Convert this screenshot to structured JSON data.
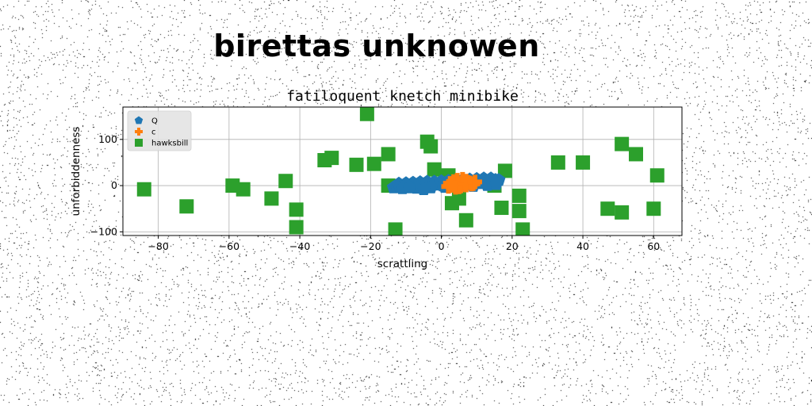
{
  "suptitle": "birettas unknowen",
  "chart_data": {
    "type": "scatter",
    "title": "fatiloquent knetch minibike",
    "xlabel": "scrattling",
    "ylabel": "unforbiddenness",
    "xlim": [
      -90,
      68
    ],
    "ylim": [
      -108,
      170
    ],
    "xticks": [
      -80,
      -60,
      -40,
      -20,
      0,
      20,
      40,
      60
    ],
    "xtick_labels": [
      "−80",
      "−60",
      "−40",
      "−20",
      "0",
      "20",
      "40",
      "60"
    ],
    "yticks": [
      -100,
      0,
      100
    ],
    "ytick_labels": [
      "−100",
      "0",
      "100"
    ],
    "grid": true,
    "legend_placement": "upper left",
    "series": [
      {
        "name": "Q",
        "marker": "pentagon",
        "color": "#1f77b4",
        "x": [
          -13.5,
          -12.6,
          -11.7,
          -10.8,
          -9.9,
          -9.0,
          -8.1,
          -7.2,
          -6.3,
          -5.4,
          -4.5,
          -3.6,
          -2.7,
          -1.8,
          -0.9,
          0.0,
          0.9,
          1.8,
          2.7,
          3.6,
          4.5,
          5.4,
          6.3,
          7.2,
          8.1,
          9.0,
          9.9,
          10.8,
          11.7,
          12.6,
          13.5,
          14.4,
          15.3,
          16.2,
          -12.0,
          -10.0,
          -8.0,
          -6.0,
          -4.0,
          -2.0,
          0.0,
          2.0,
          4.0,
          6.0,
          8.0,
          10.0,
          12.0,
          14.0,
          -11.0,
          -7.0,
          -3.0,
          1.0,
          5.0,
          9.0,
          13.0,
          15.5,
          -5.0,
          3.0,
          11.0,
          7.0,
          -9.0,
          0.5
        ],
        "y": [
          -4,
          -3,
          -2,
          -2,
          -1,
          -1,
          0,
          0,
          0,
          1,
          1,
          1,
          2,
          2,
          3,
          3,
          4,
          4,
          5,
          5,
          6,
          6,
          7,
          7,
          8,
          8,
          9,
          9,
          10,
          10,
          11,
          11,
          12,
          12,
          4,
          5,
          6,
          7,
          8,
          8,
          9,
          10,
          11,
          12,
          13,
          14,
          15,
          15,
          -6,
          -5,
          -4,
          -3,
          -2,
          -1,
          1,
          3,
          -8,
          0,
          5,
          3,
          -4,
          0
        ]
      },
      {
        "name": "c",
        "marker": "plus",
        "color": "#ff7f0e",
        "x": [
          2.0,
          3.0,
          4.0,
          5.0,
          6.0,
          7.0,
          8.0,
          9.0,
          4.5,
          5.5,
          6.5,
          7.5,
          3.5,
          8.5,
          5.0,
          6.0,
          7.0,
          4.0,
          2.5,
          9.5
        ],
        "y": [
          -2,
          0,
          3,
          5,
          8,
          10,
          6,
          4,
          12,
          -1,
          2,
          7,
          9,
          3,
          -3,
          14,
          1,
          -4,
          5,
          8
        ]
      },
      {
        "name": "hawksbill",
        "marker": "square",
        "color": "#2ca02c",
        "x": [
          -21,
          -4,
          -3,
          -33,
          -31,
          -24,
          -19,
          -15,
          18,
          33,
          40,
          51,
          55,
          61,
          -84,
          -59,
          -56,
          -44,
          -2,
          2,
          -15,
          15,
          5,
          3,
          -48,
          -72,
          -41,
          -41,
          -13,
          22,
          22,
          17,
          7,
          23,
          47,
          51,
          60
        ],
        "y": [
          155,
          95,
          85,
          55,
          60,
          45,
          47,
          68,
          32,
          50,
          50,
          90,
          68,
          22,
          -8,
          0,
          -8,
          10,
          35,
          22,
          0,
          0,
          -28,
          -38,
          -28,
          -45,
          -52,
          -90,
          -95,
          -22,
          -55,
          -48,
          -75,
          -95,
          -50,
          -58,
          -50
        ]
      }
    ]
  }
}
